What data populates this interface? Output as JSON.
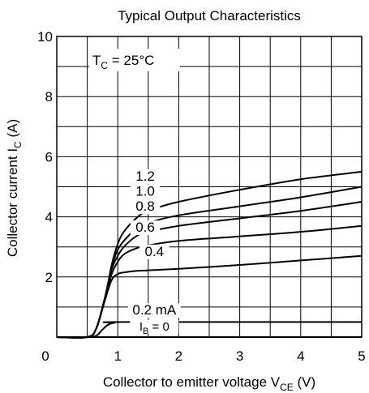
{
  "chart_data": {
    "type": "line",
    "title": "Typical Output Characteristics",
    "xlabel": {
      "main": "Collector to emitter voltage  V",
      "sub": "CE",
      "tail": "  (V)"
    },
    "ylabel": {
      "main": "Collector current  I",
      "sub": "C",
      "tail": "  (A)"
    },
    "xlim": [
      0,
      5
    ],
    "ylim": [
      0,
      10
    ],
    "xticks": [
      0,
      1,
      2,
      3,
      4,
      5
    ],
    "yticks": [
      2,
      4,
      6,
      8,
      10
    ],
    "grid": true,
    "condition": {
      "main": "T",
      "sub": "C",
      "tail": " = 25°C"
    },
    "series": [
      {
        "name": "1.2",
        "x": [
          0,
          0.5,
          0.65,
          0.8,
          0.9,
          1.0,
          1.1,
          1.3,
          1.5,
          2.0,
          3.0,
          4.0,
          5.0
        ],
        "y": [
          0,
          0,
          0.3,
          1.4,
          2.4,
          3.1,
          3.5,
          3.95,
          4.2,
          4.5,
          4.9,
          5.25,
          5.5
        ]
      },
      {
        "name": "1.0",
        "x": [
          0,
          0.5,
          0.65,
          0.8,
          0.9,
          1.0,
          1.1,
          1.3,
          1.5,
          2.0,
          3.0,
          4.0,
          5.0
        ],
        "y": [
          0,
          0,
          0.3,
          1.4,
          2.35,
          2.9,
          3.2,
          3.6,
          3.8,
          4.05,
          4.35,
          4.65,
          5.0
        ]
      },
      {
        "name": "0.8",
        "x": [
          0,
          0.5,
          0.65,
          0.8,
          0.9,
          1.0,
          1.1,
          1.3,
          1.5,
          2.0,
          3.0,
          4.0,
          5.0
        ],
        "y": [
          0,
          0,
          0.3,
          1.4,
          2.25,
          2.7,
          3.0,
          3.35,
          3.5,
          3.7,
          3.95,
          4.2,
          4.5
        ]
      },
      {
        "name": "0.6",
        "x": [
          0,
          0.5,
          0.65,
          0.8,
          0.9,
          1.0,
          1.1,
          1.3,
          1.5,
          2.0,
          3.0,
          4.0,
          5.0
        ],
        "y": [
          0,
          0,
          0.3,
          1.35,
          2.1,
          2.5,
          2.75,
          2.95,
          3.05,
          3.2,
          3.35,
          3.5,
          3.7
        ]
      },
      {
        "name": "0.4",
        "x": [
          0,
          0.5,
          0.65,
          0.8,
          0.9,
          1.0,
          1.1,
          1.3,
          1.5,
          2.0,
          3.0,
          4.0,
          5.0
        ],
        "y": [
          0,
          0,
          0.3,
          1.3,
          1.9,
          2.1,
          2.15,
          2.2,
          2.22,
          2.27,
          2.4,
          2.55,
          2.7
        ]
      },
      {
        "name": "0.2 mA",
        "x": [
          0,
          0.5,
          0.65,
          0.75,
          0.85,
          0.95,
          1.1,
          5.0
        ],
        "y": [
          0,
          0,
          0.05,
          0.25,
          0.42,
          0.48,
          0.5,
          0.5
        ]
      },
      {
        "name": "I_B = 0",
        "x": [
          0,
          5.0
        ],
        "y": [
          0,
          0
        ]
      }
    ],
    "labels": [
      {
        "text": "1.2",
        "x": 1.45,
        "y": 5.2
      },
      {
        "text": "1.0",
        "x": 1.45,
        "y": 4.7
      },
      {
        "text": "0.8",
        "x": 1.45,
        "y": 4.2
      },
      {
        "text": "0.6",
        "x": 1.45,
        "y": 3.5
      },
      {
        "text": "0.4",
        "x": 1.6,
        "y": 2.7
      },
      {
        "text": "0.2 mA",
        "x": 1.6,
        "y": 0.75
      },
      {
        "main": "I",
        "sub": "B",
        "tail": " = 0",
        "x": 1.6,
        "y": 0.22
      }
    ]
  }
}
